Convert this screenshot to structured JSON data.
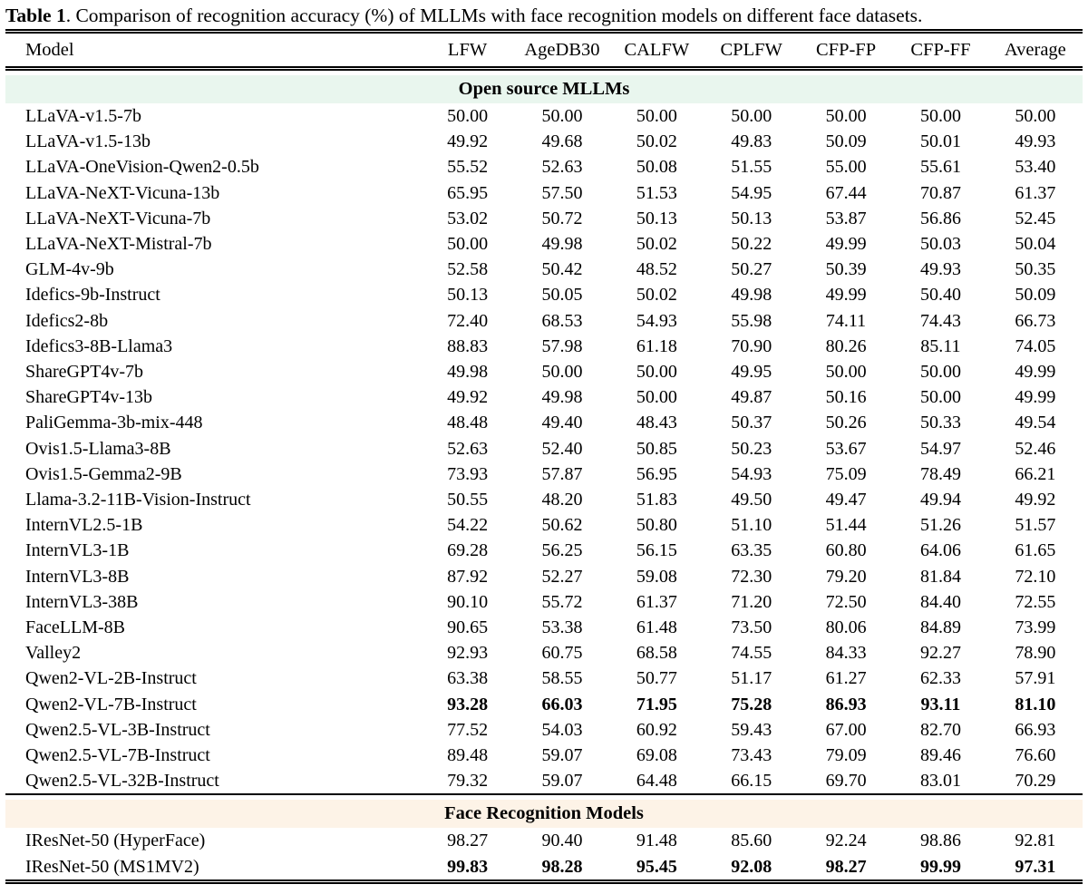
{
  "caption": {
    "label": "Table 1",
    "text": ". Comparison of recognition accuracy (%) of MLLMs with face recognition models on different face datasets."
  },
  "columns": [
    "Model",
    "LFW",
    "AgeDB30",
    "CALFW",
    "CPLFW",
    "CFP-FP",
    "CFP-FF",
    "Average"
  ],
  "colors": {
    "open_source_band": "#e9f6ee",
    "face_rec_band": "#fdf3e7",
    "rule": "#000000"
  },
  "sections": [
    {
      "label": "Open source MLLMs",
      "band_color_key": "open_source_band",
      "rows": [
        {
          "model": "LLaVA-v1.5-7b",
          "values": [
            "50.00",
            "50.00",
            "50.00",
            "50.00",
            "50.00",
            "50.00",
            "50.00"
          ],
          "bold": false
        },
        {
          "model": "LLaVA-v1.5-13b",
          "values": [
            "49.92",
            "49.68",
            "50.02",
            "49.83",
            "50.09",
            "50.01",
            "49.93"
          ],
          "bold": false
        },
        {
          "model": "LLaVA-OneVision-Qwen2-0.5b",
          "values": [
            "55.52",
            "52.63",
            "50.08",
            "51.55",
            "55.00",
            "55.61",
            "53.40"
          ],
          "bold": false
        },
        {
          "model": "LLaVA-NeXT-Vicuna-13b",
          "values": [
            "65.95",
            "57.50",
            "51.53",
            "54.95",
            "67.44",
            "70.87",
            "61.37"
          ],
          "bold": false
        },
        {
          "model": "LLaVA-NeXT-Vicuna-7b",
          "values": [
            "53.02",
            "50.72",
            "50.13",
            "50.13",
            "53.87",
            "56.86",
            "52.45"
          ],
          "bold": false
        },
        {
          "model": "LLaVA-NeXT-Mistral-7b",
          "values": [
            "50.00",
            "49.98",
            "50.02",
            "50.22",
            "49.99",
            "50.03",
            "50.04"
          ],
          "bold": false
        },
        {
          "model": "GLM-4v-9b",
          "values": [
            "52.58",
            "50.42",
            "48.52",
            "50.27",
            "50.39",
            "49.93",
            "50.35"
          ],
          "bold": false
        },
        {
          "model": "Idefics-9b-Instruct",
          "values": [
            "50.13",
            "50.05",
            "50.02",
            "49.98",
            "49.99",
            "50.40",
            "50.09"
          ],
          "bold": false
        },
        {
          "model": "Idefics2-8b",
          "values": [
            "72.40",
            "68.53",
            "54.93",
            "55.98",
            "74.11",
            "74.43",
            "66.73"
          ],
          "bold": false
        },
        {
          "model": "Idefics3-8B-Llama3",
          "values": [
            "88.83",
            "57.98",
            "61.18",
            "70.90",
            "80.26",
            "85.11",
            "74.05"
          ],
          "bold": false
        },
        {
          "model": "ShareGPT4v-7b",
          "values": [
            "49.98",
            "50.00",
            "50.00",
            "49.95",
            "50.00",
            "50.00",
            "49.99"
          ],
          "bold": false
        },
        {
          "model": "ShareGPT4v-13b",
          "values": [
            "49.92",
            "49.98",
            "50.00",
            "49.87",
            "50.16",
            "50.00",
            "49.99"
          ],
          "bold": false
        },
        {
          "model": "PaliGemma-3b-mix-448",
          "values": [
            "48.48",
            "49.40",
            "48.43",
            "50.37",
            "50.26",
            "50.33",
            "49.54"
          ],
          "bold": false
        },
        {
          "model": "Ovis1.5-Llama3-8B",
          "values": [
            "52.63",
            "52.40",
            "50.85",
            "50.23",
            "53.67",
            "54.97",
            "52.46"
          ],
          "bold": false
        },
        {
          "model": "Ovis1.5-Gemma2-9B",
          "values": [
            "73.93",
            "57.87",
            "56.95",
            "54.93",
            "75.09",
            "78.49",
            "66.21"
          ],
          "bold": false
        },
        {
          "model": "Llama-3.2-11B-Vision-Instruct",
          "values": [
            "50.55",
            "48.20",
            "51.83",
            "49.50",
            "49.47",
            "49.94",
            "49.92"
          ],
          "bold": false
        },
        {
          "model": "InternVL2.5-1B",
          "values": [
            "54.22",
            "50.62",
            "50.80",
            "51.10",
            "51.44",
            "51.26",
            "51.57"
          ],
          "bold": false
        },
        {
          "model": "InternVL3-1B",
          "values": [
            "69.28",
            "56.25",
            "56.15",
            "63.35",
            "60.80",
            "64.06",
            "61.65"
          ],
          "bold": false
        },
        {
          "model": "InternVL3-8B",
          "values": [
            "87.92",
            "52.27",
            "59.08",
            "72.30",
            "79.20",
            "81.84",
            "72.10"
          ],
          "bold": false
        },
        {
          "model": "InternVL3-38B",
          "values": [
            "90.10",
            "55.72",
            "61.37",
            "71.20",
            "72.50",
            "84.40",
            "72.55"
          ],
          "bold": false
        },
        {
          "model": "FaceLLM-8B",
          "values": [
            "90.65",
            "53.38",
            "61.48",
            "73.50",
            "80.06",
            "84.89",
            "73.99"
          ],
          "bold": false
        },
        {
          "model": "Valley2",
          "values": [
            "92.93",
            "60.75",
            "68.58",
            "74.55",
            "84.33",
            "92.27",
            "78.90"
          ],
          "bold": false
        },
        {
          "model": "Qwen2-VL-2B-Instruct",
          "values": [
            "63.38",
            "58.55",
            "50.77",
            "51.17",
            "61.27",
            "62.33",
            "57.91"
          ],
          "bold": false
        },
        {
          "model": "Qwen2-VL-7B-Instruct",
          "values": [
            "93.28",
            "66.03",
            "71.95",
            "75.28",
            "86.93",
            "93.11",
            "81.10"
          ],
          "bold": true
        },
        {
          "model": "Qwen2.5-VL-3B-Instruct",
          "values": [
            "77.52",
            "54.03",
            "60.92",
            "59.43",
            "67.00",
            "82.70",
            "66.93"
          ],
          "bold": false
        },
        {
          "model": "Qwen2.5-VL-7B-Instruct",
          "values": [
            "89.48",
            "59.07",
            "69.08",
            "73.43",
            "79.09",
            "89.46",
            "76.60"
          ],
          "bold": false
        },
        {
          "model": "Qwen2.5-VL-32B-Instruct",
          "values": [
            "79.32",
            "59.07",
            "64.48",
            "66.15",
            "69.70",
            "83.01",
            "70.29"
          ],
          "bold": false
        }
      ]
    },
    {
      "label": "Face Recognition Models",
      "band_color_key": "face_rec_band",
      "rows": [
        {
          "model": "IResNet-50 (HyperFace)",
          "values": [
            "98.27",
            "90.40",
            "91.48",
            "85.60",
            "92.24",
            "98.86",
            "92.81"
          ],
          "bold": false
        },
        {
          "model": "IResNet-50 (MS1MV2)",
          "values": [
            "99.83",
            "98.28",
            "95.45",
            "92.08",
            "98.27",
            "99.99",
            "97.31"
          ],
          "bold": true
        }
      ]
    }
  ]
}
